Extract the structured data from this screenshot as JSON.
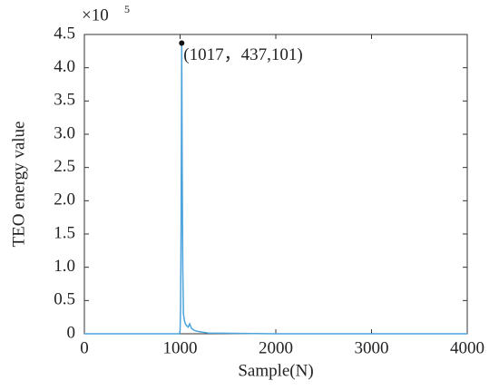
{
  "chart_data": {
    "type": "line",
    "x_label": "Sample(N)",
    "y_label": "TEO energy value",
    "y_multiplier": {
      "base": "×10",
      "exponent": "5"
    },
    "x": [
      0,
      995,
      1000,
      1005,
      1010,
      1017,
      1022,
      1028,
      1035,
      1045,
      1055,
      1070,
      1085,
      1100,
      1120,
      1150,
      1200,
      1250,
      1300,
      2000,
      3000,
      4000
    ],
    "series": [
      {
        "color": "#4da3dc",
        "values": [
          0,
          0,
          0.05,
          0.4,
          1.5,
          4.37101,
          2.5,
          1.0,
          0.3,
          0.2,
          0.15,
          0.12,
          0.1,
          0.15,
          0.08,
          0.05,
          0.03,
          0.02,
          0.01,
          0,
          0,
          0
        ]
      }
    ],
    "peak": {
      "x": 1017,
      "y": 4.37101,
      "label": "(1017，437,101)"
    },
    "xlim": [
      0,
      4000
    ],
    "xticks": [
      0,
      1000,
      2000,
      3000,
      4000
    ],
    "ylim": [
      0,
      4.5
    ],
    "yticks": [
      0,
      0.5,
      {
        "value": 1,
        "label": "1.0"
      },
      1.5,
      {
        "value": 2,
        "label": "2.0"
      },
      2.5,
      {
        "value": 3,
        "label": "3.0"
      },
      3.5,
      {
        "value": 4,
        "label": "4.0"
      },
      4.5
    ]
  }
}
